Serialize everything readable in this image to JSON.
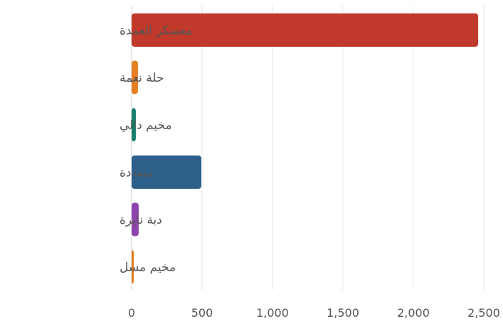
{
  "chart_data": {
    "type": "bar",
    "orientation": "horizontal",
    "categories": [
      "معسكر العمدة",
      "حلة نعمة",
      "مخيم دالي",
      "متعددة",
      "دبة نايرة",
      "مخيم مسل"
    ],
    "values": [
      2460,
      45,
      30,
      495,
      50,
      8
    ],
    "colors": [
      "#c0392b",
      "#e67e22",
      "#16806f",
      "#2c5f8a",
      "#8e44ad",
      "#e67e22"
    ],
    "xlim": [
      0,
      2500
    ],
    "xticks": [
      0,
      500,
      1000,
      1500,
      2000,
      2500
    ],
    "xtick_labels": [
      "0",
      "500",
      "1,000",
      "1,500",
      "2,000",
      "2,500"
    ],
    "grid": true,
    "title": "",
    "xlabel": "",
    "ylabel": ""
  }
}
